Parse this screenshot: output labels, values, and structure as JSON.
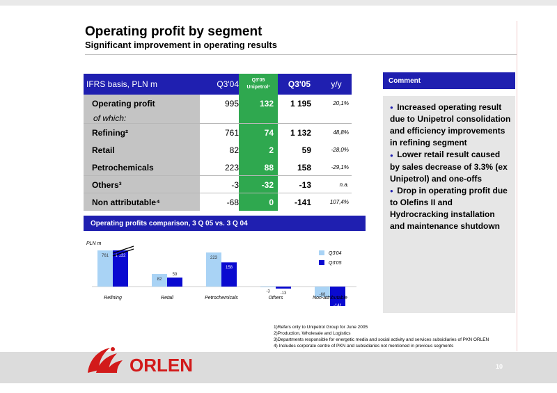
{
  "header": {
    "title": "Operating profit by segment",
    "subtitle": "Significant improvement in operating results"
  },
  "table": {
    "col_label": "IFRS basis, PLN m",
    "col_q304": "Q3'04",
    "col_unipetrol_line1": "Q3'05",
    "col_unipetrol_line2": "Unipetrol¹",
    "col_q305": "Q3'05",
    "col_yy": "y/y",
    "rows": [
      {
        "label": "Operating profit",
        "q304": "995",
        "unip": "132",
        "q305": "1 195",
        "yy": "20,1%"
      },
      {
        "label": "of which:",
        "q304": "",
        "unip": "",
        "q305": "",
        "yy": ""
      },
      {
        "label": "Refining²",
        "q304": "761",
        "unip": "74",
        "q305": "1 132",
        "yy": "48,8%"
      },
      {
        "label": "Retail",
        "q304": "82",
        "unip": "2",
        "q305": "59",
        "yy": "-28,0%"
      },
      {
        "label": "Petrochemicals",
        "q304": "223",
        "unip": "88",
        "q305": "158",
        "yy": "-29,1%"
      },
      {
        "label": "Others³",
        "q304": "-3",
        "unip": "-32",
        "q305": "-13",
        "yy": "n.a."
      },
      {
        "label": "Non attributable⁴",
        "q304": "-68",
        "unip": "0",
        "q305": "-141",
        "yy": "107,4%"
      }
    ]
  },
  "comparison": {
    "title": "Operating profits comparison, 3 Q 05 vs. 3 Q 04",
    "unit": "PLN m"
  },
  "chart_data": {
    "type": "bar",
    "categories": [
      "Refining",
      "Retail",
      "Petrochemicals",
      "Others",
      "Non-attributable"
    ],
    "series": [
      {
        "name": "Q3'04",
        "values": [
          761,
          82,
          223,
          -3,
          -68
        ],
        "labels": [
          "761",
          "82",
          "223",
          "-3",
          "-68"
        ],
        "color": "#a9d3f5"
      },
      {
        "name": "Q3'05",
        "values": [
          1132,
          59,
          158,
          -13,
          -141
        ],
        "labels": [
          "1 132",
          "59",
          "158",
          "-13",
          "-141"
        ],
        "color": "#0a0ad0"
      }
    ],
    "ylabel": "PLN m",
    "axis_break": true,
    "legend": "right"
  },
  "comment": {
    "title": "Comment",
    "bullets": [
      "Increased operating result due to Unipetrol consolidation and efficiency improvements in refining segment",
      "Lower retail result caused by sales decrease of 3.3% (ex Unipetrol) and one-offs",
      "Drop in operating profit due to Olefins II and Hydrocracking installation and maintenance shutdown"
    ]
  },
  "footnotes": [
    "1)Refers only to Unipetrol Group for June 2005",
    "2)Production, Wholesale and Logistics",
    "3)Departments responsible for energetic media and social activity and services subsidiaries of PKN ORLEN",
    "4) Includes corporate centre of PKN and subsidiaries not mentioned in previous segments"
  ],
  "footer": {
    "brand": "ORLEN",
    "page": "10"
  },
  "colors": {
    "navy": "#1f1fb0",
    "green": "#2fa84f",
    "brand_red": "#d21a1a"
  }
}
